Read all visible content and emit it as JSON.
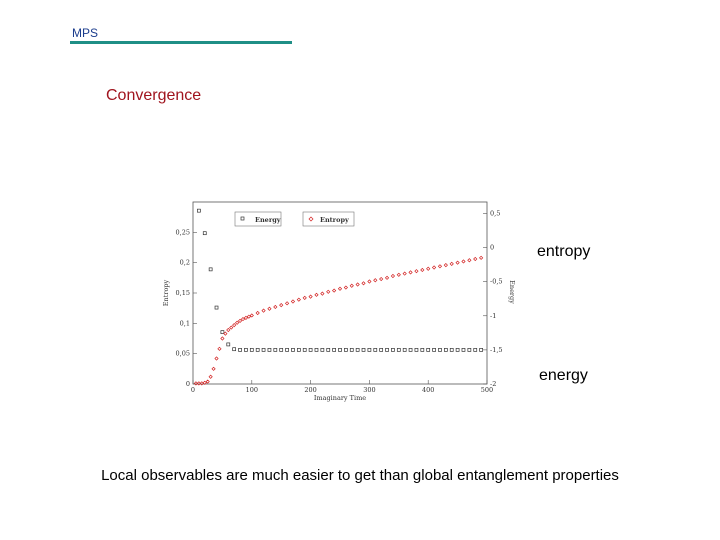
{
  "slide": {
    "header": "MPS",
    "title": "Convergence",
    "entropy_label": "entropy",
    "energy_label": "energy",
    "footer": "Local observables are much easier to get than global entanglement properties"
  },
  "colors": {
    "header_text": "#1a3b8c",
    "header_rule": "#1f8f86",
    "title_text": "#a0141e",
    "energy_marker": "#333333",
    "entropy_marker": "#d22020"
  },
  "chart_data": {
    "type": "scatter",
    "xlabel": "Imaginary Time",
    "ylabel": "Entropy",
    "y2label": "Energy",
    "xlim": [
      0,
      500
    ],
    "ylim": [
      0,
      0.3
    ],
    "y2lim": [
      -2,
      0.667
    ],
    "xticks": [
      "0",
      "100",
      "200",
      "300",
      "400",
      "500"
    ],
    "yticks": [
      "0",
      "0,05",
      "0,1",
      "0,15",
      "0,2",
      "0,25"
    ],
    "y2ticks": [
      "-2",
      "-1,5",
      "-1",
      "-0,5",
      "0",
      "0,5"
    ],
    "grid": false,
    "legend_position": "top",
    "series": [
      {
        "name": "Energy",
        "axis": "right",
        "marker": "square",
        "points": [
          [
            10,
            0.54
          ],
          [
            20,
            0.21
          ],
          [
            30,
            -0.32
          ],
          [
            40,
            -0.88
          ],
          [
            50,
            -1.24
          ],
          [
            60,
            -1.42
          ],
          [
            70,
            -1.49
          ],
          [
            80,
            -1.5
          ],
          [
            90,
            -1.5
          ],
          [
            100,
            -1.5
          ],
          [
            110,
            -1.5
          ],
          [
            120,
            -1.5
          ],
          [
            130,
            -1.5
          ],
          [
            140,
            -1.5
          ],
          [
            150,
            -1.5
          ],
          [
            160,
            -1.5
          ],
          [
            170,
            -1.5
          ],
          [
            180,
            -1.5
          ],
          [
            190,
            -1.5
          ],
          [
            200,
            -1.5
          ],
          [
            210,
            -1.5
          ],
          [
            220,
            -1.5
          ],
          [
            230,
            -1.5
          ],
          [
            240,
            -1.5
          ],
          [
            250,
            -1.5
          ],
          [
            260,
            -1.5
          ],
          [
            270,
            -1.5
          ],
          [
            280,
            -1.5
          ],
          [
            290,
            -1.5
          ],
          [
            300,
            -1.5
          ],
          [
            310,
            -1.5
          ],
          [
            320,
            -1.5
          ],
          [
            330,
            -1.5
          ],
          [
            340,
            -1.5
          ],
          [
            350,
            -1.5
          ],
          [
            360,
            -1.5
          ],
          [
            370,
            -1.5
          ],
          [
            380,
            -1.5
          ],
          [
            390,
            -1.5
          ],
          [
            400,
            -1.5
          ],
          [
            410,
            -1.5
          ],
          [
            420,
            -1.5
          ],
          [
            430,
            -1.5
          ],
          [
            440,
            -1.5
          ],
          [
            450,
            -1.5
          ],
          [
            460,
            -1.5
          ],
          [
            470,
            -1.5
          ],
          [
            480,
            -1.5
          ],
          [
            490,
            -1.5
          ]
        ]
      },
      {
        "name": "Entropy",
        "axis": "left",
        "marker": "diamond",
        "points": [
          [
            5,
            0.001
          ],
          [
            10,
            0.001
          ],
          [
            15,
            0.001
          ],
          [
            20,
            0.002
          ],
          [
            25,
            0.004
          ],
          [
            30,
            0.012
          ],
          [
            35,
            0.025
          ],
          [
            40,
            0.042
          ],
          [
            45,
            0.058
          ],
          [
            50,
            0.075
          ],
          [
            55,
            0.083
          ],
          [
            60,
            0.089
          ],
          [
            65,
            0.093
          ],
          [
            70,
            0.097
          ],
          [
            75,
            0.101
          ],
          [
            80,
            0.104
          ],
          [
            85,
            0.107
          ],
          [
            90,
            0.109
          ],
          [
            95,
            0.111
          ],
          [
            100,
            0.113
          ],
          [
            110,
            0.117
          ],
          [
            120,
            0.121
          ],
          [
            130,
            0.124
          ],
          [
            140,
            0.127
          ],
          [
            150,
            0.13
          ],
          [
            160,
            0.133
          ],
          [
            170,
            0.136
          ],
          [
            180,
            0.139
          ],
          [
            190,
            0.142
          ],
          [
            200,
            0.144
          ],
          [
            210,
            0.147
          ],
          [
            220,
            0.149
          ],
          [
            230,
            0.152
          ],
          [
            240,
            0.154
          ],
          [
            250,
            0.157
          ],
          [
            260,
            0.159
          ],
          [
            270,
            0.162
          ],
          [
            280,
            0.164
          ],
          [
            290,
            0.166
          ],
          [
            300,
            0.169
          ],
          [
            310,
            0.171
          ],
          [
            320,
            0.173
          ],
          [
            330,
            0.175
          ],
          [
            340,
            0.178
          ],
          [
            350,
            0.18
          ],
          [
            360,
            0.182
          ],
          [
            370,
            0.184
          ],
          [
            380,
            0.186
          ],
          [
            390,
            0.188
          ],
          [
            400,
            0.19
          ],
          [
            410,
            0.192
          ],
          [
            420,
            0.194
          ],
          [
            430,
            0.196
          ],
          [
            440,
            0.198
          ],
          [
            450,
            0.2
          ],
          [
            460,
            0.202
          ],
          [
            470,
            0.204
          ],
          [
            480,
            0.206
          ],
          [
            490,
            0.208
          ]
        ]
      }
    ]
  }
}
